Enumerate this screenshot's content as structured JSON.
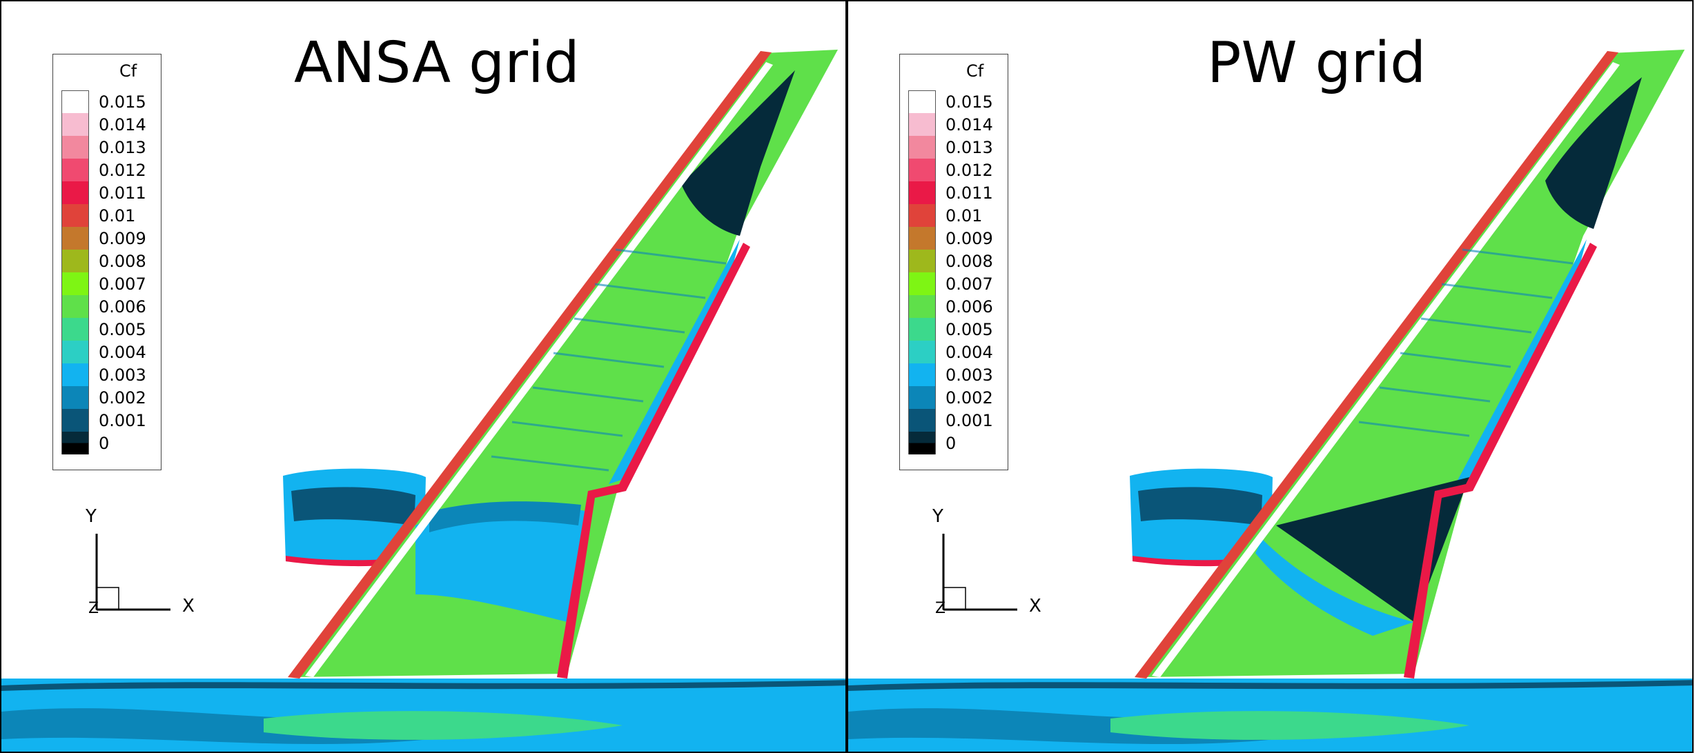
{
  "panels": [
    {
      "id": "ansa",
      "title": "ANSA grid"
    },
    {
      "id": "pw",
      "title": "PW grid"
    }
  ],
  "legend": {
    "title": "Cf",
    "entries": [
      {
        "label": "0.015",
        "color": "#ffffff"
      },
      {
        "label": "0.014",
        "color": "#f7bcd0"
      },
      {
        "label": "0.013",
        "color": "#f2889e"
      },
      {
        "label": "0.012",
        "color": "#f04a70"
      },
      {
        "label": "0.011",
        "color": "#ea1947"
      },
      {
        "label": "0.01",
        "color": "#e0433a"
      },
      {
        "label": "0.009",
        "color": "#c4782c"
      },
      {
        "label": "0.008",
        "color": "#9eb81c"
      },
      {
        "label": "0.007",
        "color": "#7ef514"
      },
      {
        "label": "0.006",
        "color": "#5fe04a"
      },
      {
        "label": "0.005",
        "color": "#3cd98c"
      },
      {
        "label": "0.004",
        "color": "#2ccfc4"
      },
      {
        "label": "0.003",
        "color": "#12b3f0"
      },
      {
        "label": "0.002",
        "color": "#0c86b8"
      },
      {
        "label": "0.001",
        "color": "#0a5578"
      },
      {
        "label": "0",
        "color": "#052a3a"
      }
    ],
    "zero_color": "#000000"
  },
  "axes": {
    "x": "X",
    "y": "Y",
    "z": "Z"
  }
}
